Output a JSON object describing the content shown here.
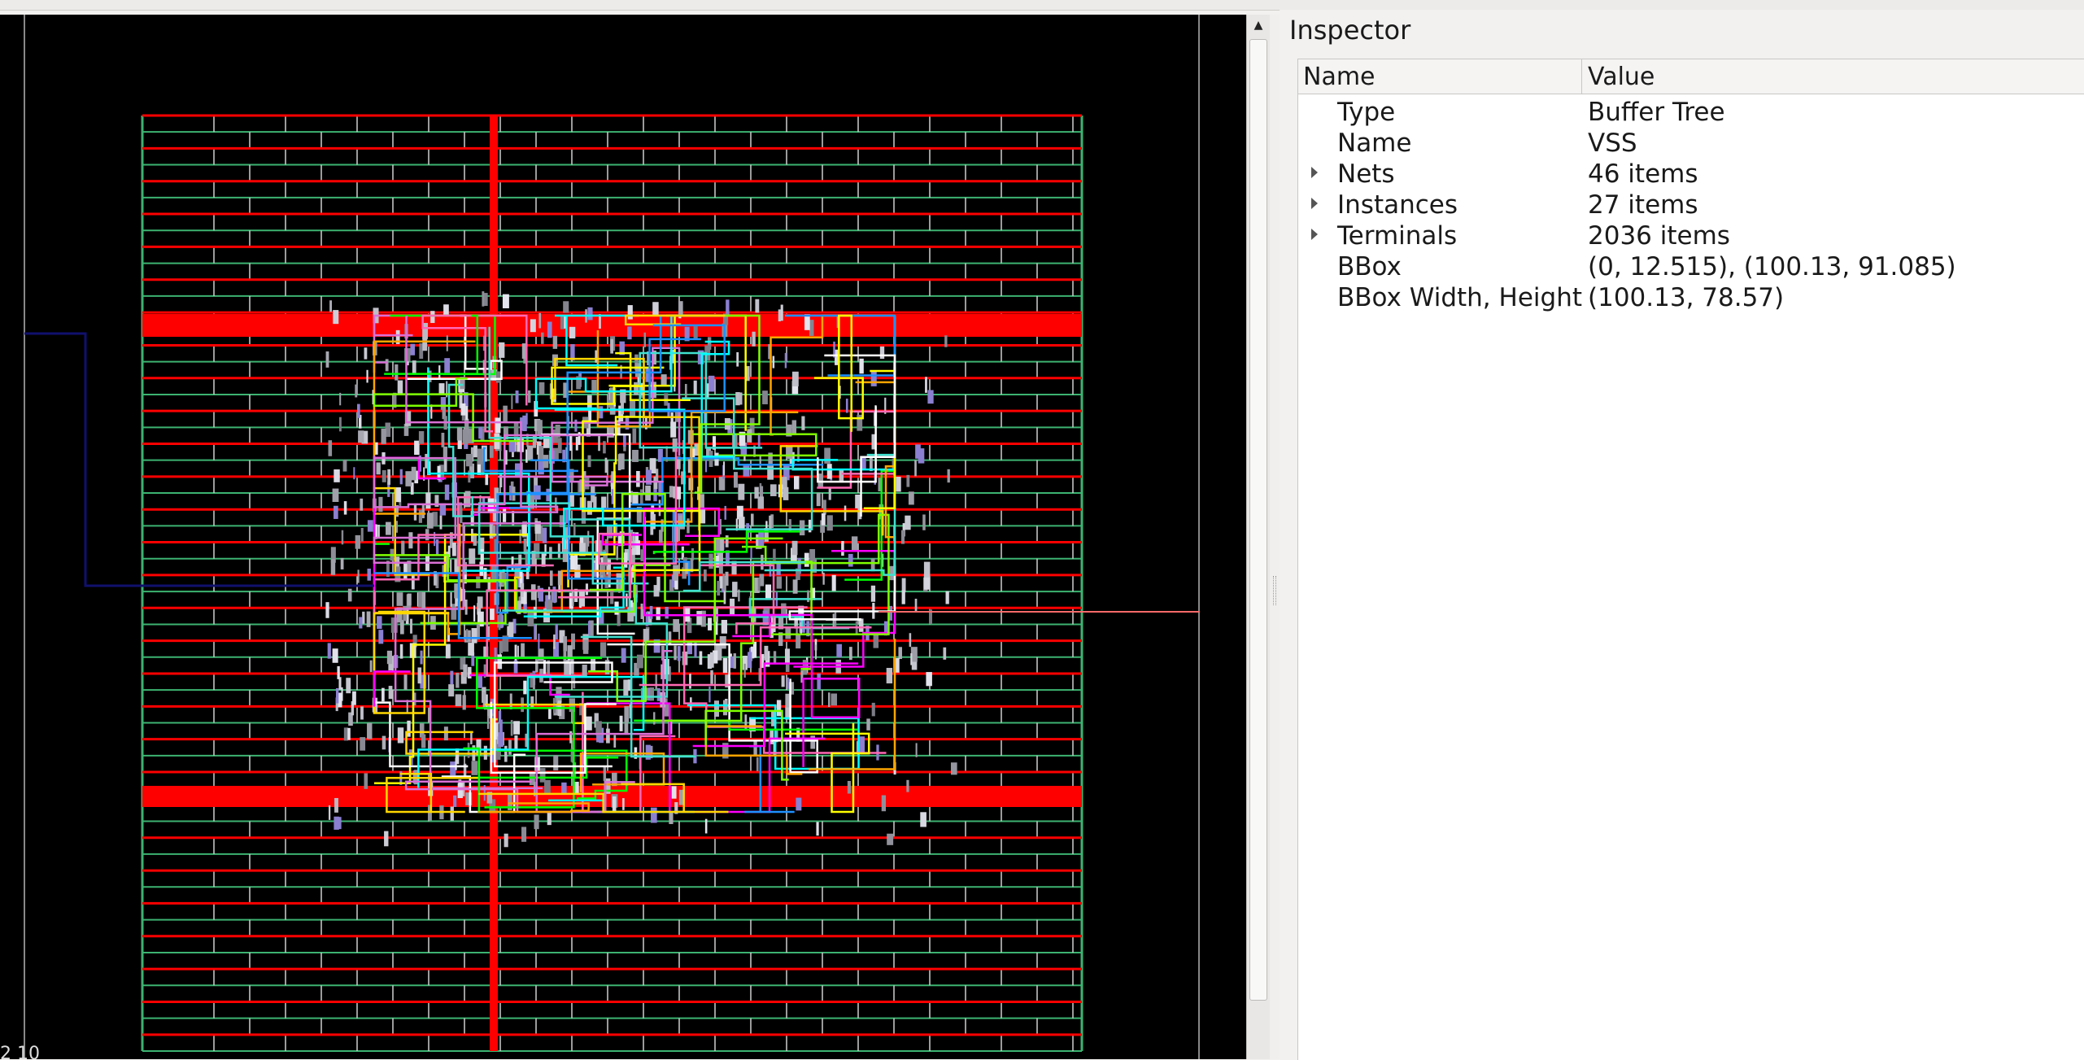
{
  "inspector": {
    "title": "Inspector",
    "columns": {
      "name": "Name",
      "value": "Value"
    },
    "rows": [
      {
        "name": "Type",
        "value": "Buffer Tree",
        "expandable": false
      },
      {
        "name": "Name",
        "value": "VSS",
        "expandable": false
      },
      {
        "name": "Nets",
        "value": "46 items",
        "expandable": true
      },
      {
        "name": "Instances",
        "value": "27 items",
        "expandable": true
      },
      {
        "name": "Terminals",
        "value": "2036 items",
        "expandable": true
      },
      {
        "name": "BBox",
        "value": "(0, 12.515), (100.13, 91.085)",
        "expandable": false
      },
      {
        "name": "BBox Width, Height",
        "value": "(100.13, 78.57)",
        "expandable": false
      }
    ]
  },
  "layout_view": {
    "scale_text": "2 10",
    "colors": {
      "background": "#000000",
      "power_rail": "#ff0000",
      "row_line": "#3cb371",
      "cell": "#9a9aa4",
      "io_net_left": "#10106e",
      "io_net_right": "#ff6a6a",
      "nets": [
        "#00ff00",
        "#ffff00",
        "#00ffff",
        "#ff00ff",
        "#ffa500",
        "#ffffff",
        "#ff69b4",
        "#1e90ff",
        "#7fff00",
        "#da70d6",
        "#40e0d0",
        "#ffd700"
      ]
    }
  },
  "colors": {
    "panel_bg": "#f2f1f0",
    "tree_bg": "#ffffff",
    "text": "#1a1a1a"
  }
}
